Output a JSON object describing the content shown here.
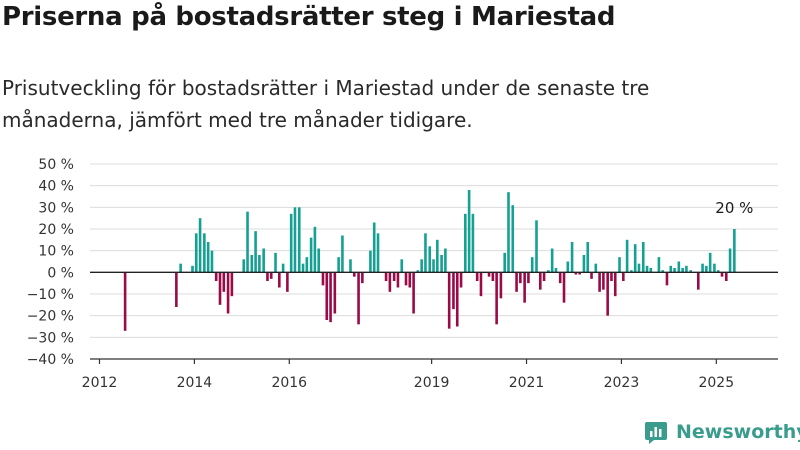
{
  "title": "Priserna på bostadsrätter steg i Mariestad",
  "subtitle": "Prisutveckling för bostadsrätter i Mariestad under de senaste tre månaderna, jämfört med tre månader tidigare.",
  "brand": "Newsworthy",
  "colors": {
    "positive": "#14a092",
    "negative": "#9b0a46",
    "grid": "#dcdcdc",
    "axis": "#333333",
    "brand": "#3a9c8c"
  },
  "chart_data": {
    "type": "bar",
    "ylim": [
      -40,
      50
    ],
    "yticks": [
      -40,
      -30,
      -20,
      -10,
      0,
      10,
      20,
      30,
      40,
      50
    ],
    "ytick_labels": [
      "−40 %",
      "−30 %",
      "−20 %",
      "−10 %",
      "0 %",
      "10 %",
      "20 %",
      "30 %",
      "40 %",
      "50 %"
    ],
    "xlim": [
      2011.8,
      2026.3
    ],
    "xticks": [
      2012,
      2014,
      2016,
      2019,
      2021,
      2023,
      2025
    ],
    "xtick_labels": [
      "2012",
      "2014",
      "2016",
      "2019",
      "2021",
      "2023",
      "2025"
    ],
    "grid": true,
    "annotation": {
      "text": "20 %",
      "x": 2025.38,
      "y": 20
    },
    "points": [
      {
        "x": 2012.54,
        "y": -27
      },
      {
        "x": 2013.62,
        "y": -16
      },
      {
        "x": 2013.71,
        "y": 4
      },
      {
        "x": 2013.96,
        "y": 3
      },
      {
        "x": 2014.04,
        "y": 18
      },
      {
        "x": 2014.12,
        "y": 25
      },
      {
        "x": 2014.21,
        "y": 18
      },
      {
        "x": 2014.29,
        "y": 14
      },
      {
        "x": 2014.37,
        "y": 10
      },
      {
        "x": 2014.46,
        "y": -4
      },
      {
        "x": 2014.54,
        "y": -15
      },
      {
        "x": 2014.62,
        "y": -9
      },
      {
        "x": 2014.71,
        "y": -19
      },
      {
        "x": 2014.79,
        "y": -11
      },
      {
        "x": 2015.04,
        "y": 6
      },
      {
        "x": 2015.12,
        "y": 28
      },
      {
        "x": 2015.21,
        "y": 8
      },
      {
        "x": 2015.29,
        "y": 19
      },
      {
        "x": 2015.37,
        "y": 8
      },
      {
        "x": 2015.46,
        "y": 11
      },
      {
        "x": 2015.54,
        "y": -4
      },
      {
        "x": 2015.62,
        "y": -3
      },
      {
        "x": 2015.71,
        "y": 9
      },
      {
        "x": 2015.79,
        "y": -7
      },
      {
        "x": 2015.87,
        "y": 4
      },
      {
        "x": 2015.96,
        "y": -9
      },
      {
        "x": 2016.04,
        "y": 27
      },
      {
        "x": 2016.12,
        "y": 30
      },
      {
        "x": 2016.21,
        "y": 30
      },
      {
        "x": 2016.29,
        "y": 4
      },
      {
        "x": 2016.37,
        "y": 7
      },
      {
        "x": 2016.46,
        "y": 16
      },
      {
        "x": 2016.54,
        "y": 21
      },
      {
        "x": 2016.62,
        "y": 11
      },
      {
        "x": 2016.71,
        "y": -6
      },
      {
        "x": 2016.79,
        "y": -22
      },
      {
        "x": 2016.87,
        "y": -23
      },
      {
        "x": 2016.96,
        "y": -19
      },
      {
        "x": 2017.04,
        "y": 7
      },
      {
        "x": 2017.12,
        "y": 17
      },
      {
        "x": 2017.29,
        "y": 6
      },
      {
        "x": 2017.37,
        "y": -2
      },
      {
        "x": 2017.46,
        "y": -24
      },
      {
        "x": 2017.54,
        "y": -5
      },
      {
        "x": 2017.71,
        "y": 10
      },
      {
        "x": 2017.79,
        "y": 23
      },
      {
        "x": 2017.87,
        "y": 18
      },
      {
        "x": 2018.04,
        "y": -4
      },
      {
        "x": 2018.12,
        "y": -9
      },
      {
        "x": 2018.21,
        "y": -4
      },
      {
        "x": 2018.29,
        "y": -7
      },
      {
        "x": 2018.37,
        "y": 6
      },
      {
        "x": 2018.46,
        "y": -6
      },
      {
        "x": 2018.54,
        "y": -7
      },
      {
        "x": 2018.62,
        "y": -19
      },
      {
        "x": 2018.71,
        "y": 1
      },
      {
        "x": 2018.79,
        "y": 6
      },
      {
        "x": 2018.87,
        "y": 18
      },
      {
        "x": 2018.96,
        "y": 12
      },
      {
        "x": 2019.04,
        "y": 6
      },
      {
        "x": 2019.12,
        "y": 15
      },
      {
        "x": 2019.21,
        "y": 8
      },
      {
        "x": 2019.29,
        "y": 11
      },
      {
        "x": 2019.37,
        "y": -26
      },
      {
        "x": 2019.46,
        "y": -17
      },
      {
        "x": 2019.54,
        "y": -25
      },
      {
        "x": 2019.62,
        "y": -7
      },
      {
        "x": 2019.71,
        "y": 27
      },
      {
        "x": 2019.79,
        "y": 38
      },
      {
        "x": 2019.87,
        "y": 27
      },
      {
        "x": 2019.96,
        "y": -4
      },
      {
        "x": 2020.04,
        "y": -11
      },
      {
        "x": 2020.21,
        "y": -2
      },
      {
        "x": 2020.29,
        "y": -4
      },
      {
        "x": 2020.37,
        "y": -24
      },
      {
        "x": 2020.46,
        "y": -12
      },
      {
        "x": 2020.54,
        "y": 9
      },
      {
        "x": 2020.62,
        "y": 37
      },
      {
        "x": 2020.71,
        "y": 31
      },
      {
        "x": 2020.79,
        "y": -9
      },
      {
        "x": 2020.87,
        "y": -5
      },
      {
        "x": 2020.96,
        "y": -14
      },
      {
        "x": 2021.04,
        "y": -5
      },
      {
        "x": 2021.12,
        "y": 7
      },
      {
        "x": 2021.21,
        "y": 24
      },
      {
        "x": 2021.29,
        "y": -8
      },
      {
        "x": 2021.37,
        "y": -4
      },
      {
        "x": 2021.46,
        "y": 1
      },
      {
        "x": 2021.54,
        "y": 11
      },
      {
        "x": 2021.62,
        "y": 2
      },
      {
        "x": 2021.71,
        "y": -5
      },
      {
        "x": 2021.79,
        "y": -14
      },
      {
        "x": 2021.87,
        "y": 5
      },
      {
        "x": 2021.96,
        "y": 14
      },
      {
        "x": 2022.04,
        "y": -1
      },
      {
        "x": 2022.12,
        "y": -1
      },
      {
        "x": 2022.21,
        "y": 8
      },
      {
        "x": 2022.29,
        "y": 14
      },
      {
        "x": 2022.37,
        "y": -3
      },
      {
        "x": 2022.46,
        "y": 4
      },
      {
        "x": 2022.54,
        "y": -9
      },
      {
        "x": 2022.62,
        "y": -8
      },
      {
        "x": 2022.71,
        "y": -20
      },
      {
        "x": 2022.79,
        "y": -4
      },
      {
        "x": 2022.87,
        "y": -11
      },
      {
        "x": 2022.96,
        "y": 7
      },
      {
        "x": 2023.04,
        "y": -4
      },
      {
        "x": 2023.12,
        "y": 15
      },
      {
        "x": 2023.21,
        "y": 1
      },
      {
        "x": 2023.29,
        "y": 13
      },
      {
        "x": 2023.37,
        "y": 4
      },
      {
        "x": 2023.46,
        "y": 14
      },
      {
        "x": 2023.54,
        "y": 3
      },
      {
        "x": 2023.62,
        "y": 2
      },
      {
        "x": 2023.79,
        "y": 7
      },
      {
        "x": 2023.87,
        "y": 1
      },
      {
        "x": 2023.96,
        "y": -6
      },
      {
        "x": 2024.04,
        "y": 3
      },
      {
        "x": 2024.12,
        "y": 2
      },
      {
        "x": 2024.21,
        "y": 5
      },
      {
        "x": 2024.29,
        "y": 2
      },
      {
        "x": 2024.37,
        "y": 3
      },
      {
        "x": 2024.46,
        "y": 1
      },
      {
        "x": 2024.62,
        "y": -8
      },
      {
        "x": 2024.71,
        "y": 4
      },
      {
        "x": 2024.79,
        "y": 3
      },
      {
        "x": 2024.87,
        "y": 9
      },
      {
        "x": 2024.96,
        "y": 4
      },
      {
        "x": 2025.04,
        "y": 1
      },
      {
        "x": 2025.12,
        "y": -2
      },
      {
        "x": 2025.21,
        "y": -4
      },
      {
        "x": 2025.29,
        "y": 11
      },
      {
        "x": 2025.38,
        "y": 20
      }
    ]
  }
}
